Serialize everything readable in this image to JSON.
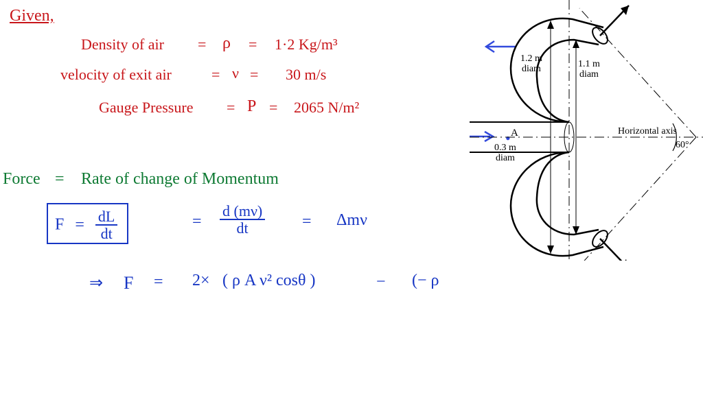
{
  "heading": "Given,",
  "line1_label": "Density of air",
  "line1_sym": "ρ",
  "line1_val": "1·2 Kg/m³",
  "line2_label": "velocity of exit air",
  "line2_sym": "ν",
  "line2_val": "30 m/s",
  "line3_label": "Gauge Pressure",
  "line3_sym": "P",
  "line3_val": "2065  N/m²",
  "force_label": "Force",
  "rate_label": "Rate of change of Momentum",
  "eq1_lhs": "F",
  "eq1_num": "dL",
  "eq1_den": "dt",
  "eq2_num": "d (mν)",
  "eq2_den": "dt",
  "eq2_rhs": "Δmν",
  "eq3_arrow": "⇒",
  "eq3_F": "F",
  "eq3_eq": "=",
  "eq3_twox": "2×",
  "eq3_paren": "( ρ A ν² cosθ )",
  "eq3_minus": "−",
  "eq3_tail": "(− ρ",
  "diag": {
    "d12": "1.2 m\ndiam",
    "d11": "1.1 m\ndiam",
    "A": "A",
    "d03": "0.3 m\ndiam",
    "axis": "Horizontal axis",
    "angle": "60°"
  },
  "colors": {
    "red": "#c8161a",
    "green": "#0e7a33",
    "blue": "#1736c4",
    "black": "#000000",
    "inkstroke": "#000000",
    "bluearrow": "#324add"
  },
  "fonts": {
    "hand_size": 22,
    "diag_size": 14
  }
}
